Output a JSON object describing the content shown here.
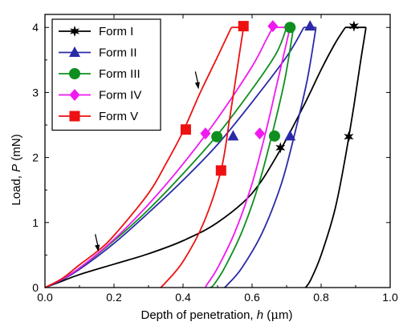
{
  "chart_data": {
    "type": "line",
    "xlabel": "Depth of penetration, h (μm)",
    "ylabel": "Load, P (mN)",
    "xlabel_parts": {
      "pre": "Depth of penetration, ",
      "var": "h",
      "post": " (",
      "mu": "μ",
      "unit": "m)"
    },
    "ylabel_parts": {
      "pre": "Load, ",
      "var": "P",
      "post": " (mN)"
    },
    "xlim": [
      0.0,
      1.0
    ],
    "ylim": [
      0,
      4.2
    ],
    "xticks": [
      "0.0",
      "0.2",
      "0.4",
      "0.6",
      "0.8",
      "1.0"
    ],
    "yticks": [
      "0",
      "1",
      "2",
      "3",
      "4"
    ],
    "xtick_values": [
      0.0,
      0.2,
      0.4,
      0.6,
      0.8,
      1.0
    ],
    "ytick_values": [
      0,
      1,
      2,
      3,
      4
    ],
    "legend_position": "top-left",
    "annotations": [
      {
        "type": "arrow",
        "points_to": [
          0.155,
          0.55
        ]
      },
      {
        "type": "arrow",
        "points_to": [
          0.445,
          3.05
        ]
      }
    ],
    "series": [
      {
        "name": "Form I",
        "color": "#000000",
        "marker": "star6",
        "loading": [
          [
            0,
            0
          ],
          [
            0.05,
            0.1
          ],
          [
            0.1,
            0.2
          ],
          [
            0.2,
            0.36
          ],
          [
            0.3,
            0.52
          ],
          [
            0.4,
            0.72
          ],
          [
            0.5,
            1.0
          ],
          [
            0.6,
            1.45
          ],
          [
            0.68,
            2.1
          ],
          [
            0.75,
            2.8
          ],
          [
            0.8,
            3.35
          ],
          [
            0.84,
            3.75
          ],
          [
            0.87,
            4.0
          ]
        ],
        "hold": [
          [
            0.87,
            4.0
          ],
          [
            0.93,
            4.0
          ]
        ],
        "unloading": [
          [
            0.93,
            4.0
          ],
          [
            0.915,
            3.5
          ],
          [
            0.895,
            2.8
          ],
          [
            0.87,
            2.0
          ],
          [
            0.84,
            1.2
          ],
          [
            0.8,
            0.5
          ],
          [
            0.77,
            0.12
          ],
          [
            0.755,
            0.0
          ]
        ],
        "markers": [
          [
            0.895,
            4.02
          ],
          [
            0.682,
            2.15
          ],
          [
            0.88,
            2.32
          ]
        ]
      },
      {
        "name": "Form II",
        "color": "#2a2aa8",
        "marker": "triangle",
        "loading": [
          [
            0,
            0
          ],
          [
            0.05,
            0.12
          ],
          [
            0.1,
            0.28
          ],
          [
            0.2,
            0.68
          ],
          [
            0.3,
            1.15
          ],
          [
            0.4,
            1.65
          ],
          [
            0.5,
            2.2
          ],
          [
            0.6,
            2.85
          ],
          [
            0.7,
            3.55
          ],
          [
            0.75,
            4.0
          ]
        ],
        "hold": [
          [
            0.75,
            4.0
          ],
          [
            0.785,
            4.0
          ]
        ],
        "unloading": [
          [
            0.785,
            4.0
          ],
          [
            0.76,
            3.2
          ],
          [
            0.725,
            2.4
          ],
          [
            0.685,
            1.6
          ],
          [
            0.63,
            0.85
          ],
          [
            0.57,
            0.3
          ],
          [
            0.53,
            0.05
          ],
          [
            0.52,
            0.0
          ]
        ],
        "markers": [
          [
            0.768,
            4.02
          ],
          [
            0.545,
            2.33
          ],
          [
            0.71,
            2.33
          ]
        ]
      },
      {
        "name": "Form III",
        "color": "#0f8f1f",
        "marker": "circle",
        "loading": [
          [
            0,
            0
          ],
          [
            0.05,
            0.13
          ],
          [
            0.1,
            0.3
          ],
          [
            0.2,
            0.72
          ],
          [
            0.3,
            1.2
          ],
          [
            0.4,
            1.75
          ],
          [
            0.5,
            2.35
          ],
          [
            0.6,
            3.05
          ],
          [
            0.67,
            3.6
          ],
          [
            0.7,
            4.0
          ]
        ],
        "hold": [
          [
            0.7,
            4.0
          ],
          [
            0.72,
            4.0
          ]
        ],
        "unloading": [
          [
            0.72,
            4.0
          ],
          [
            0.695,
            3.2
          ],
          [
            0.66,
            2.4
          ],
          [
            0.62,
            1.6
          ],
          [
            0.57,
            0.85
          ],
          [
            0.52,
            0.3
          ],
          [
            0.49,
            0.05
          ],
          [
            0.48,
            0.0
          ]
        ],
        "markers": [
          [
            0.71,
            4.0
          ],
          [
            0.498,
            2.32
          ],
          [
            0.665,
            2.33
          ]
        ]
      },
      {
        "name": "Form IV",
        "color": "#f019f0",
        "marker": "diamond",
        "loading": [
          [
            0,
            0
          ],
          [
            0.05,
            0.13
          ],
          [
            0.1,
            0.3
          ],
          [
            0.2,
            0.74
          ],
          [
            0.3,
            1.28
          ],
          [
            0.4,
            1.9
          ],
          [
            0.5,
            2.6
          ],
          [
            0.6,
            3.4
          ],
          [
            0.64,
            3.8
          ],
          [
            0.66,
            4.0
          ]
        ],
        "hold": [
          [
            0.66,
            4.0
          ],
          [
            0.71,
            4.0
          ]
        ],
        "unloading": [
          [
            0.71,
            4.0
          ],
          [
            0.675,
            3.2
          ],
          [
            0.64,
            2.4
          ],
          [
            0.6,
            1.6
          ],
          [
            0.55,
            0.85
          ],
          [
            0.5,
            0.3
          ],
          [
            0.47,
            0.05
          ],
          [
            0.465,
            0.0
          ]
        ],
        "markers": [
          [
            0.66,
            4.02
          ],
          [
            0.465,
            2.37
          ],
          [
            0.622,
            2.37
          ]
        ]
      },
      {
        "name": "Form V",
        "color": "#ee1111",
        "marker": "square",
        "loading": [
          [
            0,
            0
          ],
          [
            0.05,
            0.14
          ],
          [
            0.1,
            0.35
          ],
          [
            0.15,
            0.55
          ],
          [
            0.2,
            0.8
          ],
          [
            0.3,
            1.45
          ],
          [
            0.35,
            1.9
          ],
          [
            0.4,
            2.4
          ],
          [
            0.45,
            3.0
          ],
          [
            0.5,
            3.55
          ],
          [
            0.54,
            4.0
          ]
        ],
        "hold": [
          [
            0.54,
            4.0
          ],
          [
            0.575,
            4.0
          ]
        ],
        "unloading": [
          [
            0.575,
            4.0
          ],
          [
            0.555,
            3.3
          ],
          [
            0.535,
            2.6
          ],
          [
            0.51,
            1.8
          ],
          [
            0.46,
            1.0
          ],
          [
            0.4,
            0.4
          ],
          [
            0.35,
            0.08
          ],
          [
            0.335,
            0.0
          ]
        ],
        "markers": [
          [
            0.575,
            4.02
          ],
          [
            0.408,
            2.43
          ],
          [
            0.51,
            1.8
          ]
        ]
      }
    ]
  }
}
